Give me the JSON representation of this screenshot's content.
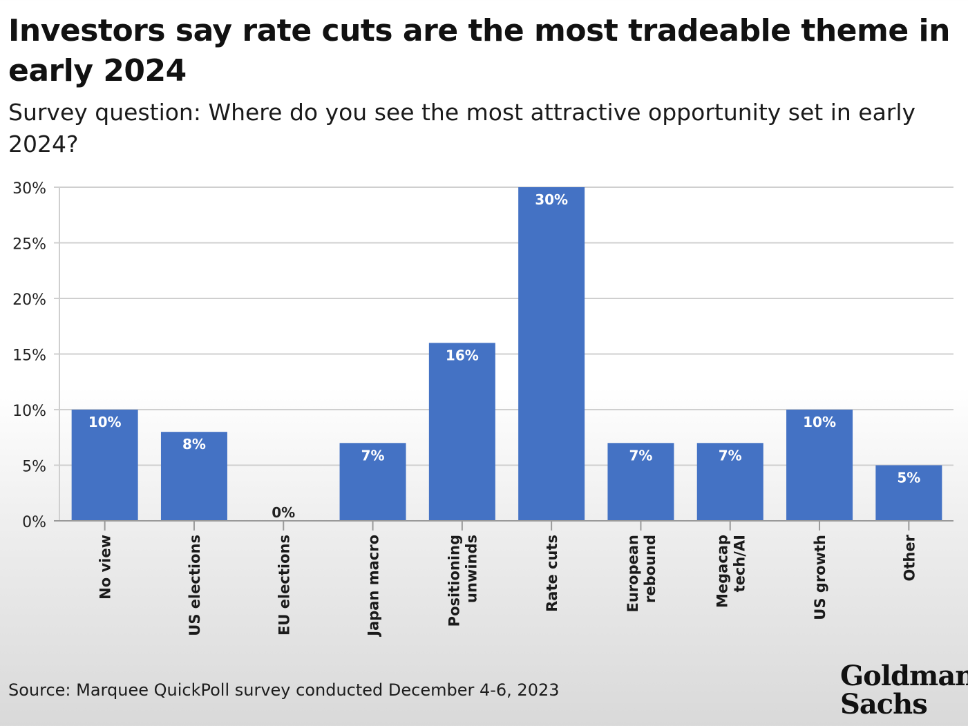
{
  "title": "Investors say rate cuts are the most tradeable theme in early 2024",
  "subtitle": "Survey question: Where do you see the most attractive opportunity set in early 2024?",
  "source": "Source: Marquee QuickPoll survey conducted December 4-6, 2023",
  "logo": {
    "line1": "Goldman",
    "line2": "Sachs"
  },
  "colors": {
    "bar": "#4472c4",
    "grid": "#cfcfcf",
    "axis": "#999999",
    "bar_label": "#ffffff",
    "outside_label": "#222222"
  },
  "chart_data": {
    "type": "bar",
    "categories": [
      [
        "No view"
      ],
      [
        "US elections"
      ],
      [
        "EU elections"
      ],
      [
        "Japan macro"
      ],
      [
        "Positioning",
        "unwinds"
      ],
      [
        "Rate cuts"
      ],
      [
        "European",
        "rebound"
      ],
      [
        "Megacap",
        "tech/AI"
      ],
      [
        "US growth"
      ],
      [
        "Other"
      ]
    ],
    "values": [
      10,
      8,
      0,
      7,
      16,
      30,
      7,
      7,
      10,
      5
    ],
    "data_labels": [
      "10%",
      "8%",
      "0%",
      "7%",
      "16%",
      "30%",
      "7%",
      "7%",
      "10%",
      "5%"
    ],
    "ylim": [
      0,
      30
    ],
    "yticks": [
      0,
      5,
      10,
      15,
      20,
      25,
      30
    ],
    "ytick_labels": [
      "0%",
      "5%",
      "10%",
      "15%",
      "20%",
      "25%",
      "30%"
    ],
    "xlabel": "",
    "ylabel": "",
    "grid": true,
    "legend": "none"
  }
}
